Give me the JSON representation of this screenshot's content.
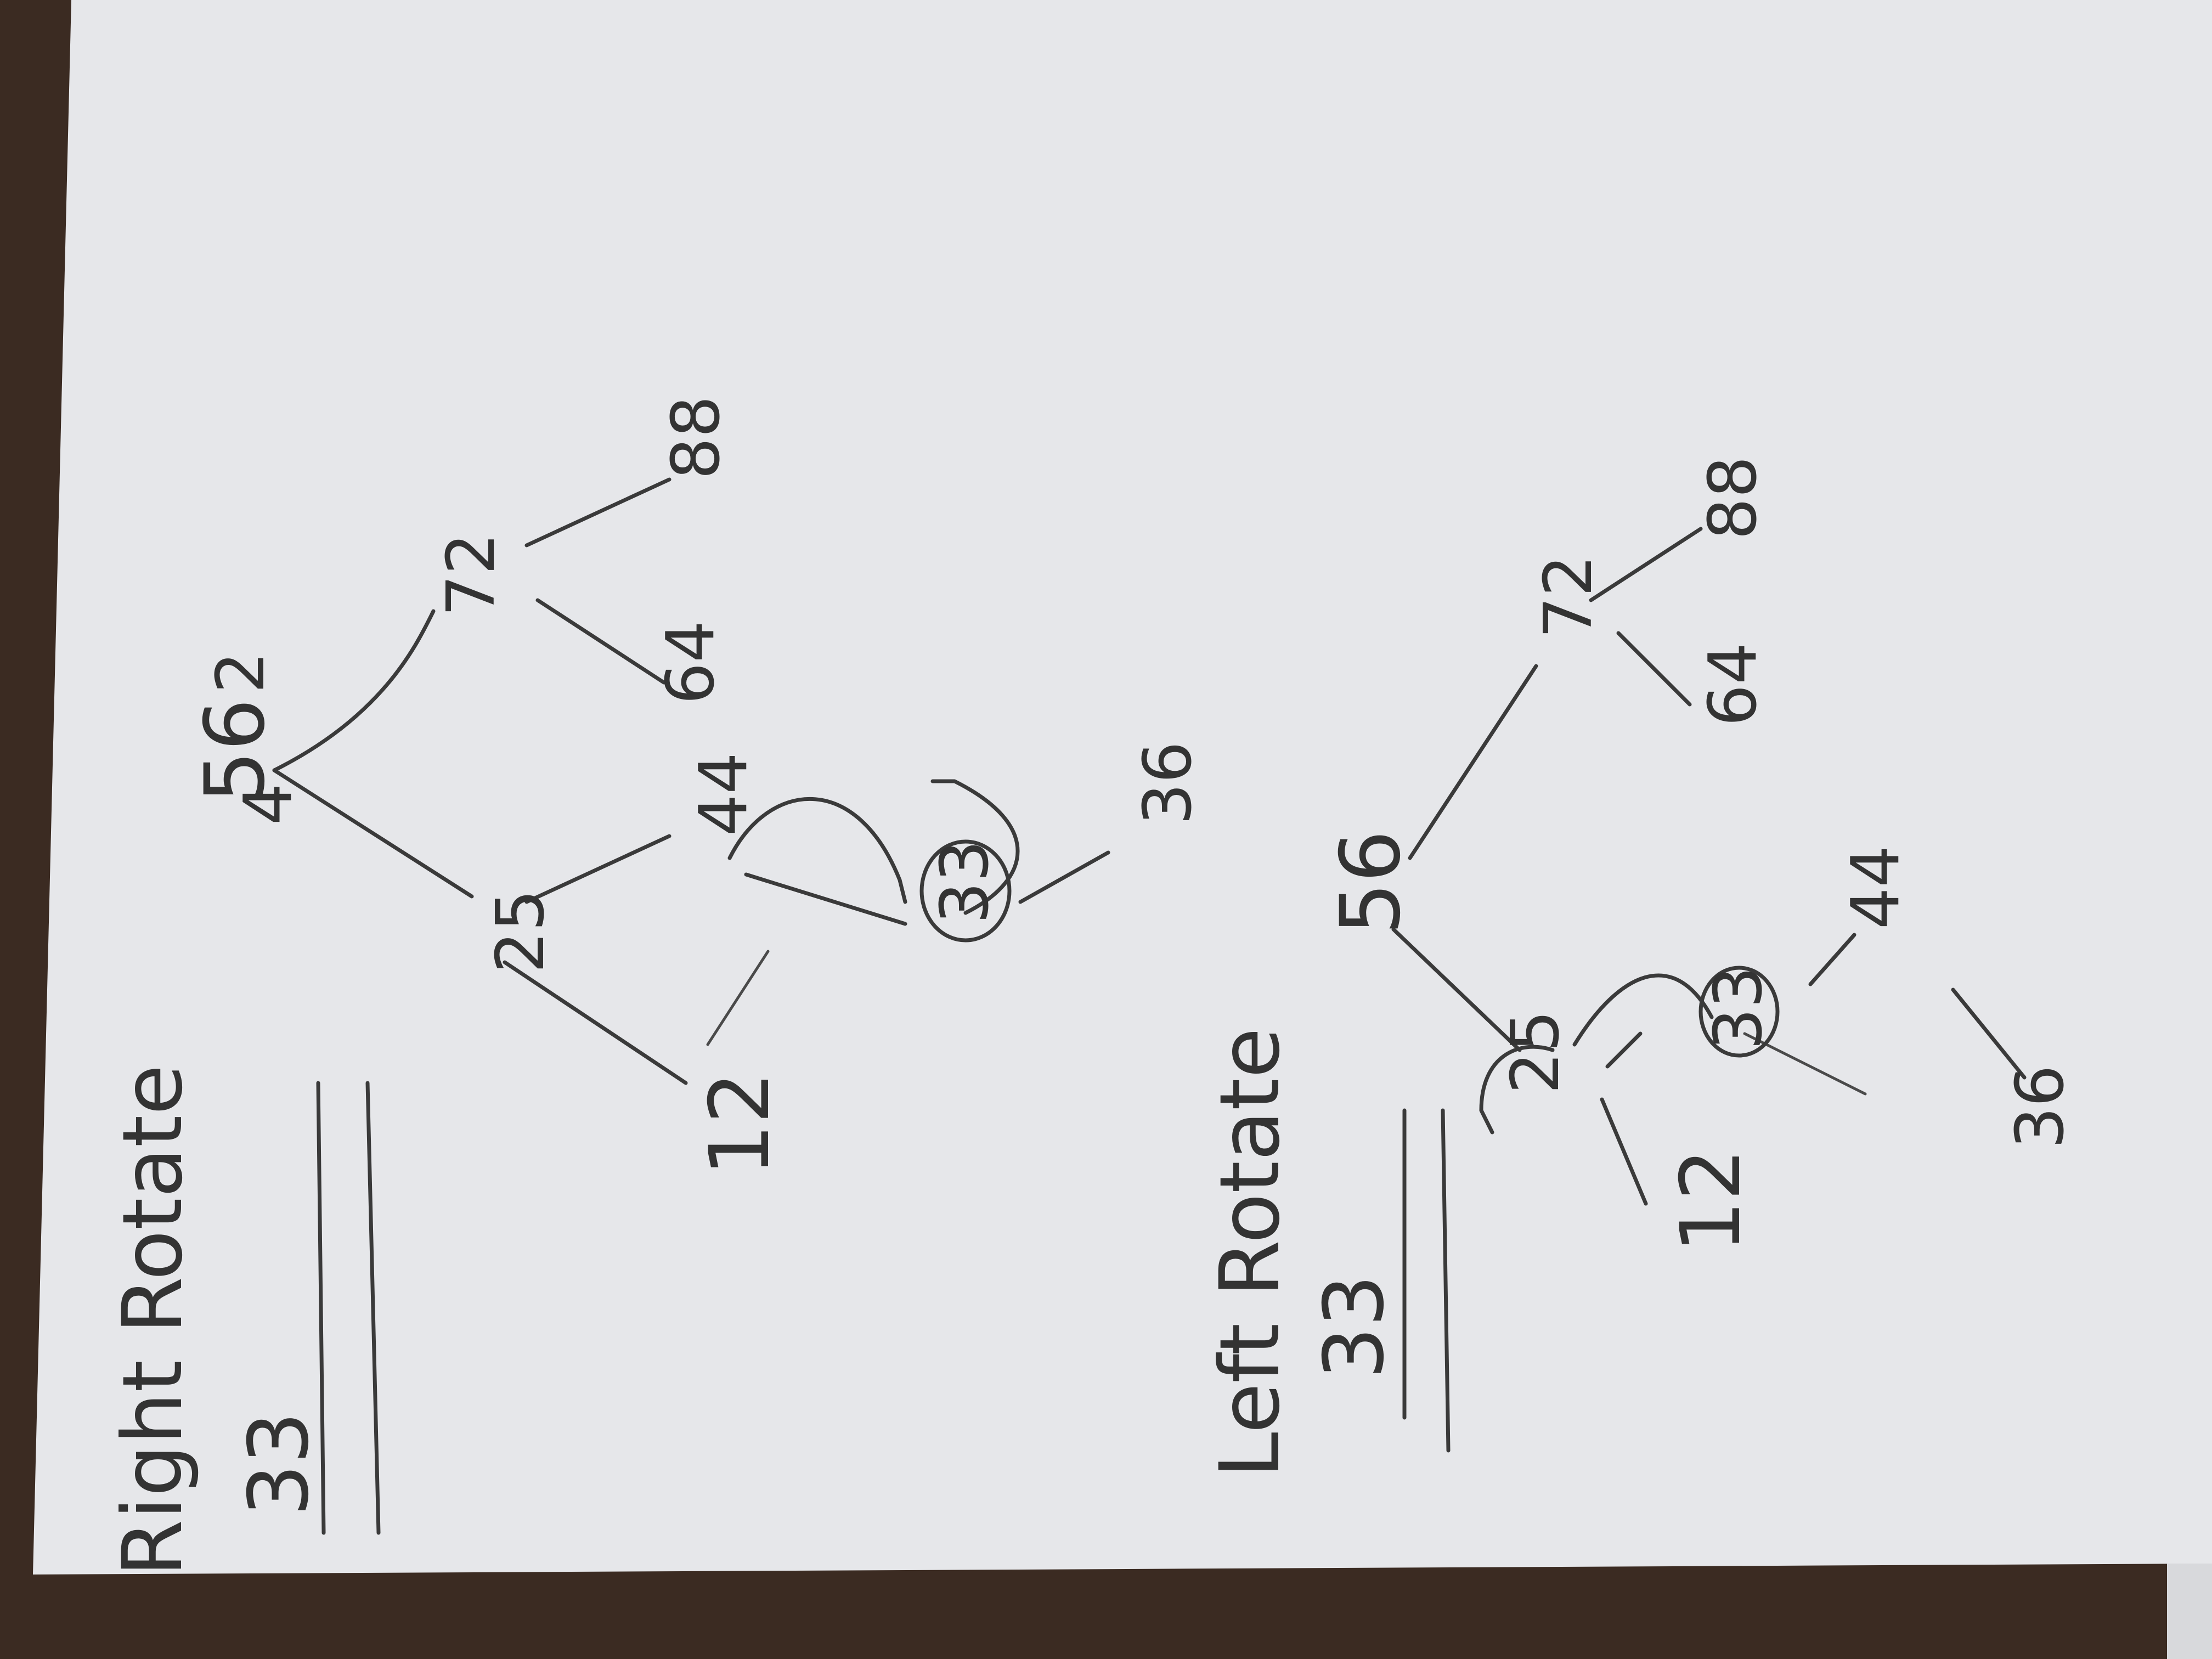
{
  "colors": {
    "desk": "#3b2b22",
    "paper": "#e6e7ea",
    "ink": "#3a3a3a"
  },
  "right_rotate": {
    "title": "Right Rotate",
    "key": "33",
    "nodes": {
      "root_a": "4",
      "root_b": "56",
      "root_c": "2",
      "n25": "25",
      "n72": "72",
      "n12": "12",
      "n44": "44",
      "n33": "33",
      "n36": "36",
      "n64": "64",
      "n88": "88"
    }
  },
  "left_rotate": {
    "title": "Left Rotate",
    "key": "33",
    "nodes": {
      "root": "56",
      "n25": "25",
      "n72": "72",
      "n12": "12",
      "n33": "33",
      "n44": "44",
      "n36": "36",
      "n64": "64",
      "n88": "88"
    }
  }
}
